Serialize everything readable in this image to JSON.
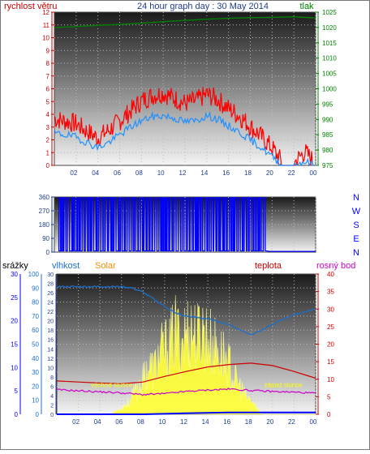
{
  "header": {
    "title": "24 hour graph day : 30 May 2014",
    "left_label": "rychlost větru",
    "right_label": "tlak"
  },
  "colors": {
    "wind": "#ff0000",
    "wind_avg": "#1e90ff",
    "pressure": "#008000",
    "direction": "#0000ff",
    "rain": "#0000ff",
    "humidity": "#1e6fc8",
    "solar": "#ffff33",
    "solar_text": "#ff8c00",
    "temp": "#cc0000",
    "dew": "#cc00cc",
    "sun_event_text": "#ffff00",
    "tick_red": "#cc0000",
    "tick_green": "#008000",
    "tick_blue": "#0000ff",
    "tick_navy": "#1e3c8c",
    "tick_magenta": "#cc00cc"
  },
  "chart_data": [
    {
      "type": "line",
      "panel": "wind-pressure",
      "x_ticks": [
        "02",
        "04",
        "06",
        "08",
        "10",
        "12",
        "14",
        "16",
        "18",
        "20",
        "22",
        "00"
      ],
      "y_left": {
        "label": "rychlost větru",
        "range": [
          0,
          12
        ],
        "ticks": [
          0,
          1,
          2,
          3,
          4,
          5,
          6,
          7,
          8,
          9,
          10,
          11,
          12
        ]
      },
      "y_right": {
        "label": "tlak",
        "range": [
          975,
          1025
        ],
        "ticks": [
          975,
          980,
          985,
          990,
          995,
          1000,
          1005,
          1010,
          1015,
          1020,
          1025
        ]
      },
      "grid": true,
      "series": [
        {
          "axis": "left",
          "style": "gust-spikes",
          "x": [
            0,
            1,
            2,
            3,
            4,
            5,
            6,
            7,
            8,
            9,
            10,
            11,
            12,
            13,
            14,
            15,
            16,
            17,
            18,
            19,
            20,
            21,
            22,
            23,
            24
          ],
          "values": [
            3.5,
            3.3,
            3.1,
            2.5,
            2.0,
            2.6,
            3.3,
            4.1,
            4.9,
            5.3,
            5.5,
            5.1,
            4.7,
            4.9,
            5.4,
            5.0,
            4.3,
            3.7,
            2.9,
            2.1,
            1.2,
            0.0,
            0.0,
            0.9,
            0.0
          ]
        },
        {
          "axis": "left",
          "style": "line",
          "x": [
            0,
            1,
            2,
            3,
            4,
            5,
            6,
            7,
            8,
            9,
            10,
            11,
            12,
            13,
            14,
            15,
            16,
            17,
            18,
            19,
            20,
            21,
            22,
            23,
            24
          ],
          "values": [
            2.5,
            2.4,
            2.2,
            1.8,
            1.4,
            1.8,
            2.4,
            3.0,
            3.5,
            3.8,
            3.9,
            3.7,
            3.4,
            3.5,
            3.9,
            3.6,
            3.1,
            2.6,
            2.0,
            1.4,
            0.7,
            0.0,
            0.0,
            0.3,
            0.0
          ]
        },
        {
          "axis": "right",
          "style": "line",
          "x": [
            0,
            2,
            4,
            6,
            8,
            10,
            12,
            14,
            16,
            18,
            20,
            22,
            24
          ],
          "values": [
            1020.0,
            1020.3,
            1020.7,
            1021.0,
            1021.4,
            1021.9,
            1022.3,
            1022.7,
            1023.0,
            1023.2,
            1023.3,
            1023.5,
            1023.1
          ]
        }
      ]
    },
    {
      "type": "line",
      "panel": "wind-direction",
      "x_ticks": [
        "02",
        "04",
        "06",
        "08",
        "10",
        "12",
        "14",
        "16",
        "18",
        "20",
        "22",
        "00"
      ],
      "y_left": {
        "range": [
          0,
          360
        ],
        "ticks": [
          0,
          90,
          180,
          270,
          360
        ]
      },
      "y_right_labels": [
        "N",
        "W",
        "S",
        "E",
        "N"
      ],
      "grid": true,
      "series": [
        {
          "style": "direction-switching",
          "x": [
            0,
            0.5,
            1,
            1.5,
            2,
            2.5,
            3,
            3.5,
            4,
            4.5,
            5,
            5.5,
            6,
            6.5,
            7,
            7.5,
            8,
            8.5,
            9,
            9.5,
            10,
            10.5,
            11,
            11.5,
            12,
            12.5,
            13,
            13.5,
            14,
            14.5,
            15,
            15.5,
            16,
            16.5,
            17,
            17.5,
            18,
            18.5,
            19,
            19.5,
            20,
            21,
            22,
            23,
            24
          ],
          "values": [
            355,
            10,
            350,
            8,
            352,
            12,
            350,
            5,
            355,
            15,
            350,
            8,
            352,
            10,
            355,
            6,
            350,
            12,
            354,
            8,
            352,
            5,
            350,
            10,
            355,
            8,
            352,
            12,
            350,
            6,
            355,
            10,
            352,
            8,
            350,
            12,
            355,
            6,
            352,
            8,
            350,
            5,
            5,
            5,
            5
          ]
        }
      ]
    },
    {
      "type": "line",
      "panel": "rain-humidity-solar-temp",
      "x_ticks": [
        "02",
        "04",
        "06",
        "08",
        "10",
        "12",
        "14",
        "16",
        "18",
        "20",
        "22",
        "00"
      ],
      "axes": {
        "srazky": {
          "label": "srážky",
          "range": [
            0,
            30
          ],
          "ticks": [
            0,
            5,
            10,
            15,
            20,
            25,
            30
          ]
        },
        "vlhkost": {
          "label": "vlhkost",
          "range": [
            0,
            100
          ],
          "ticks": [
            0,
            10,
            20,
            30,
            40,
            50,
            60,
            70,
            80,
            90,
            100
          ]
        },
        "solar": {
          "label": "Solar",
          "range": [
            0,
            30
          ],
          "ticks": [
            0,
            2,
            4,
            6,
            8,
            10,
            12,
            14,
            16,
            18,
            20,
            22,
            24,
            26,
            28,
            30
          ]
        },
        "teplota": {
          "label": "teplota",
          "range": [
            0,
            40
          ],
          "ticks": [
            0,
            5,
            10,
            15,
            20,
            25,
            30,
            35,
            40
          ]
        },
        "rosny_bod": {
          "label": "rosný bod",
          "range": [
            0,
            40
          ]
        }
      },
      "annotations": [
        {
          "text": "východ slunce",
          "x": 5.1
        },
        {
          "text": "západ slunce",
          "x": 21.0
        }
      ],
      "grid": true,
      "series": [
        {
          "axis": "vlhkost",
          "x": [
            0,
            2,
            4,
            6,
            7,
            8,
            9,
            10,
            11,
            12,
            13,
            14,
            15,
            16,
            17,
            18,
            19,
            20,
            21,
            22,
            23,
            24
          ],
          "values": [
            91,
            91,
            91,
            91,
            90,
            87,
            82,
            77,
            72,
            70,
            69,
            68,
            66,
            64,
            60,
            57,
            60,
            64,
            68,
            71,
            73,
            75
          ]
        },
        {
          "axis": "solar",
          "style": "area",
          "x": [
            0,
            5,
            5.5,
            6,
            6.5,
            7,
            7.5,
            8,
            8.5,
            9,
            9.5,
            10,
            10.5,
            11,
            11.5,
            12,
            12.5,
            13,
            13.5,
            14,
            14.5,
            15,
            15.5,
            16,
            16.5,
            17,
            17.5,
            18,
            18.5,
            19,
            24
          ],
          "values": [
            0,
            0,
            1,
            2,
            3,
            5,
            8,
            10,
            14,
            13,
            17,
            19,
            20,
            24,
            21,
            24,
            25,
            22,
            25,
            22,
            20,
            18,
            17,
            14,
            10,
            8,
            5,
            4,
            2,
            0,
            0
          ]
        },
        {
          "axis": "teplota",
          "x": [
            0,
            2,
            4,
            6,
            8,
            10,
            12,
            14,
            16,
            18,
            20,
            22,
            24
          ],
          "values": [
            9.5,
            9.2,
            8.9,
            8.7,
            9.2,
            10.8,
            12.2,
            13.5,
            14.2,
            14.6,
            13.9,
            12.2,
            10.3
          ]
        },
        {
          "axis": "teplota",
          "x": [
            0,
            2,
            4,
            6,
            8,
            10,
            12,
            14,
            16,
            18,
            20,
            22,
            24
          ],
          "values": [
            7.0,
            6.7,
            6.4,
            6.1,
            5.6,
            5.9,
            6.5,
            6.9,
            7.2,
            6.8,
            6.5,
            6.3,
            6.0
          ]
        },
        {
          "axis": "srazky",
          "x": [
            0,
            4,
            8,
            12,
            16,
            20,
            23.5,
            24
          ],
          "values": [
            0,
            0,
            0,
            0.2,
            0.4,
            0.4,
            0.4,
            0.4
          ]
        }
      ]
    }
  ]
}
